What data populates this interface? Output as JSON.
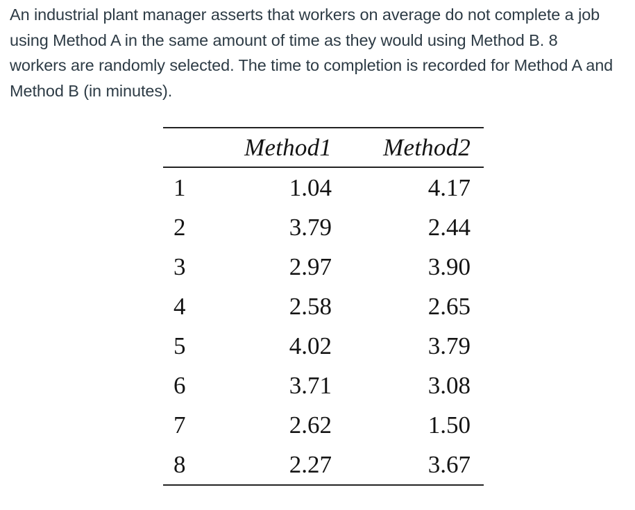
{
  "problem": {
    "text": "An industrial plant manager asserts that workers on average do not complete a job using Method A in the same amount of time as they would using Method B. 8 workers are randomly selected. The time to completion is recorded for Method A and Method B (in minutes).",
    "lines": [
      "An industrial plant manager asserts that workers on average do not complete a job",
      "using Method A in the same amount of time as they would using Method B. 8",
      "workers are randomly selected. The time to completion is recorded for Method A and",
      "Method B (in minutes)."
    ]
  },
  "table": {
    "headers": {
      "worker": "",
      "method1": "Method1",
      "method2": "Method2"
    },
    "rows": [
      {
        "worker": "1",
        "method1": "1.04",
        "method2": "4.17"
      },
      {
        "worker": "2",
        "method1": "3.79",
        "method2": "2.44"
      },
      {
        "worker": "3",
        "method1": "2.97",
        "method2": "3.90"
      },
      {
        "worker": "4",
        "method1": "2.58",
        "method2": "2.65"
      },
      {
        "worker": "5",
        "method1": "4.02",
        "method2": "3.79"
      },
      {
        "worker": "6",
        "method1": "3.71",
        "method2": "3.08"
      },
      {
        "worker": "7",
        "method1": "2.62",
        "method2": "1.50"
      },
      {
        "worker": "8",
        "method1": "2.27",
        "method2": "3.67"
      }
    ]
  },
  "colors": {
    "paragraph_text": "#2d3b45",
    "table_text": "#141414",
    "rule": "#222222",
    "background": "#ffffff"
  }
}
